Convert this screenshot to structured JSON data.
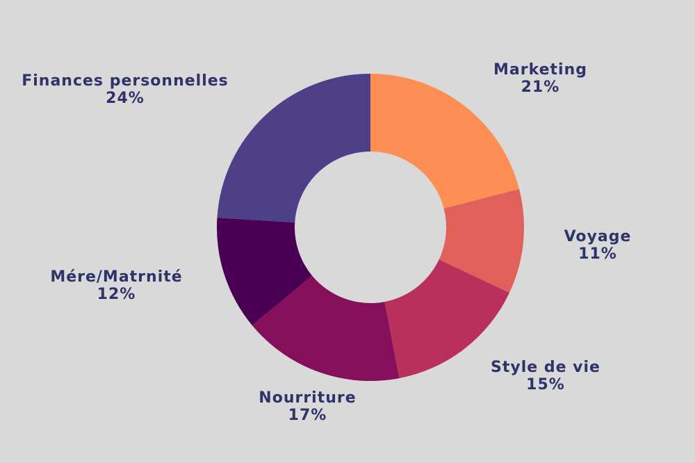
{
  "chart_data": {
    "type": "pie",
    "variant": "donut",
    "title": "",
    "categories": [
      "Marketing",
      "Voyage",
      "Style de vie",
      "Nourriture",
      "Mére/Matrnité",
      "Finances personnelles"
    ],
    "values": [
      21,
      11,
      15,
      17,
      12,
      24
    ],
    "unit": "%",
    "colors": [
      "#fd8f55",
      "#e2605a",
      "#b8305b",
      "#850f5a",
      "#490053",
      "#4e3f89"
    ],
    "start_angle": "12 o'clock",
    "direction": "clockwise",
    "legend": "none (direct labels)"
  },
  "labels": [
    {
      "name": "Marketing",
      "pct": "21%"
    },
    {
      "name": "Voyage",
      "pct": "11%"
    },
    {
      "name": "Style de vie",
      "pct": "15%"
    },
    {
      "name": "Nourriture",
      "pct": "17%"
    },
    {
      "name": "Mére/Matrnité",
      "pct": "12%"
    },
    {
      "name": "Finances personnelles",
      "pct": "24%"
    }
  ],
  "style": {
    "background": "#d9d9d9",
    "label_color": "#2e3468"
  }
}
